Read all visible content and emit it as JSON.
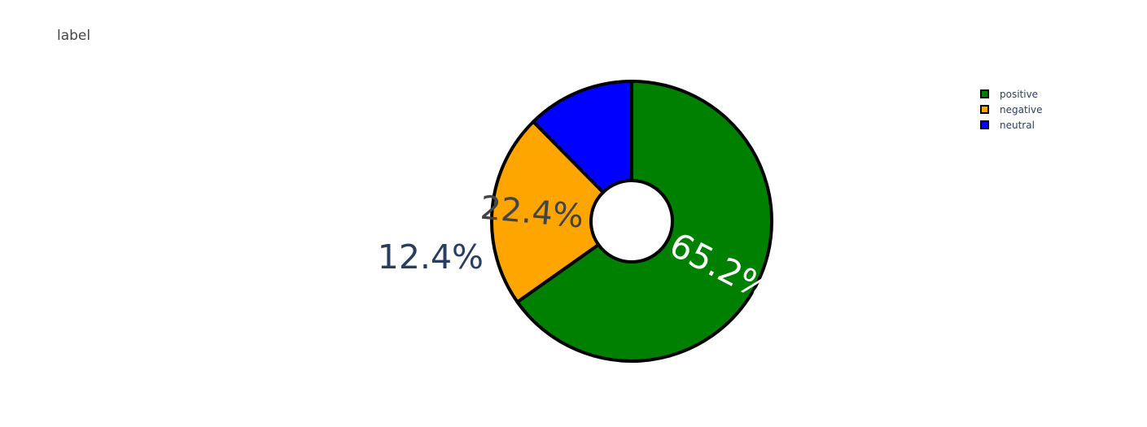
{
  "chart_data": {
    "type": "pie",
    "title": "label",
    "hole": true,
    "slices": [
      {
        "label": "positive",
        "percent": 65.2,
        "percent_label": "65.2%",
        "color": "#008000",
        "text_color": "#ffffff",
        "label_position": "inside"
      },
      {
        "label": "negative",
        "percent": 22.4,
        "percent_label": "22.4%",
        "color": "#FFA500",
        "text_color": "#444444",
        "label_position": "inside"
      },
      {
        "label": "neutral",
        "percent": 12.4,
        "percent_label": "12.4%",
        "color": "#0000FF",
        "text_color": "#2a3f5f",
        "label_position": "outside"
      }
    ],
    "legend": {
      "placement": "top-right",
      "entries": [
        "positive",
        "negative",
        "neutral"
      ]
    },
    "slice_border_color": "#000000"
  }
}
